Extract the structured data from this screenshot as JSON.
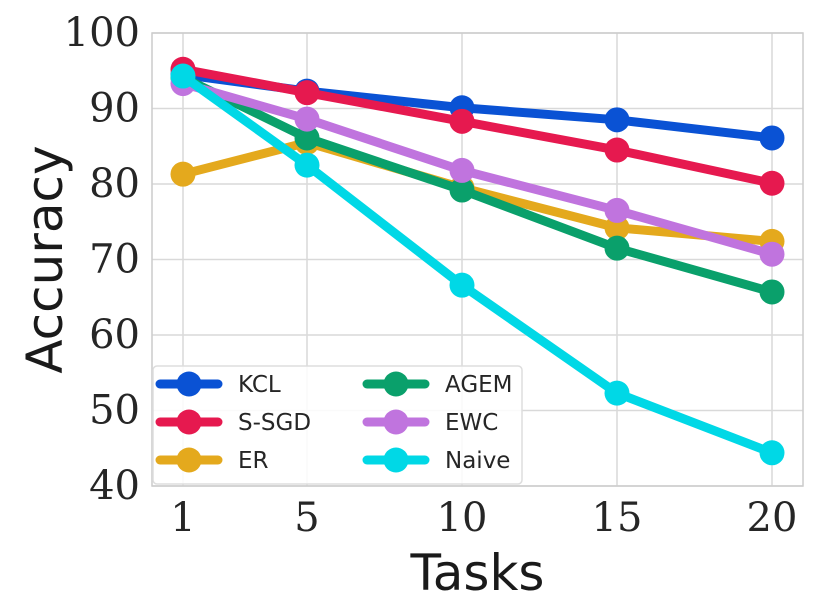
{
  "chart_data": {
    "type": "line",
    "title": "",
    "xlabel": "Tasks",
    "ylabel": "Accuracy",
    "x": [
      1,
      5,
      10,
      15,
      20
    ],
    "xlim": [
      0,
      21
    ],
    "ylim": [
      40,
      100
    ],
    "xticks": [
      1,
      5,
      10,
      15,
      20
    ],
    "yticks": [
      40,
      50,
      60,
      70,
      80,
      90,
      100
    ],
    "grid": true,
    "legend_position": "bottom-left",
    "series": [
      {
        "name": "KCL",
        "color": "#0a52d4",
        "values": [
          94.5,
          92.3,
          90.1,
          88.5,
          86.1
        ]
      },
      {
        "name": "S-SGD",
        "color": "#e6194f",
        "values": [
          95.2,
          92.1,
          88.3,
          84.5,
          80.1
        ]
      },
      {
        "name": "ER",
        "color": "#e4a91d",
        "values": [
          81.3,
          85.5,
          79.5,
          74.2,
          72.4
        ]
      },
      {
        "name": "AGEM",
        "color": "#0aa06b",
        "values": [
          94.1,
          86.1,
          79.2,
          71.5,
          65.7
        ]
      },
      {
        "name": "EWC",
        "color": "#c074de",
        "values": [
          93.3,
          88.6,
          81.8,
          76.5,
          70.7
        ]
      },
      {
        "name": "Naive",
        "color": "#00d8e6",
        "values": [
          94.3,
          82.5,
          66.6,
          52.3,
          44.4
        ]
      }
    ]
  }
}
